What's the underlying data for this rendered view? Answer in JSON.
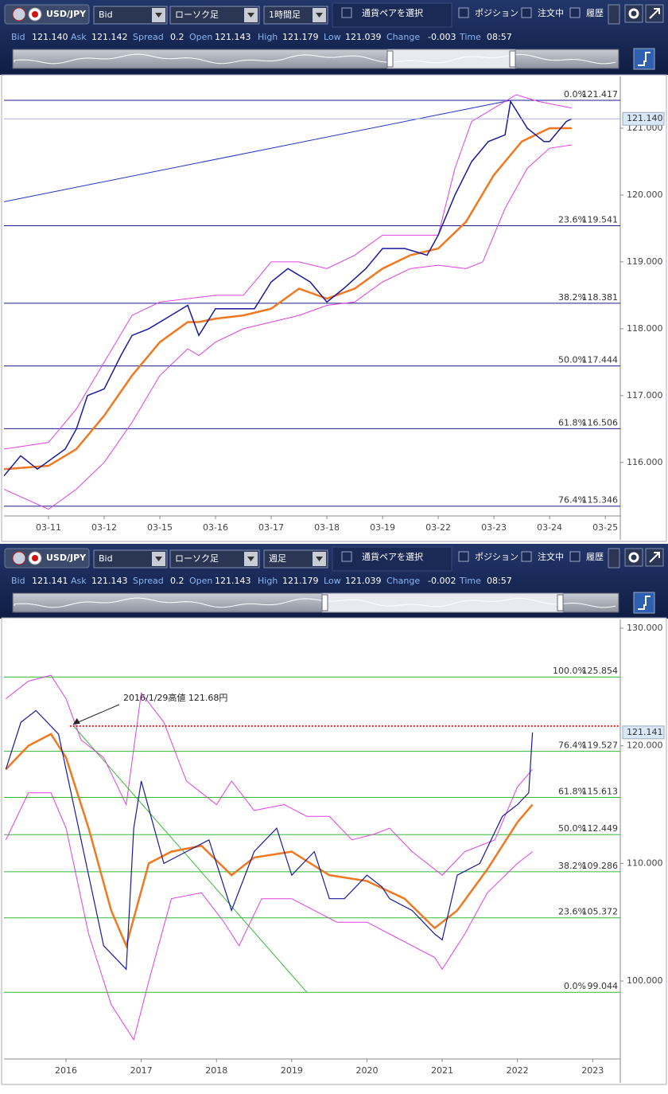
{
  "panels": [
    {
      "toolbar": {
        "pair": "USD/JPY",
        "price": "Bid",
        "chart_type": "ローソク足",
        "timeframe": "1時間足",
        "pair_select": "通貨ペアを選択",
        "position": "ポジション",
        "orders": "注文中",
        "history": "履歴"
      },
      "quote": [
        [
          "Bid",
          "121.140"
        ],
        [
          "Ask",
          "121.142"
        ],
        [
          "Spread",
          "0.2"
        ],
        [
          "Open",
          "121.143"
        ],
        [
          "High",
          "121.179"
        ],
        [
          "Low",
          "121.039"
        ],
        [
          "Change",
          "-0.003"
        ],
        [
          "Time",
          "08:57"
        ]
      ],
      "chart": {
        "ylim": [
          115.2,
          121.774
        ],
        "xlim": [
          -0.8,
          10.27
        ],
        "yticks": [
          {
            "value": 116,
            "label": "116.000"
          },
          {
            "value": 117,
            "label": "117.000"
          },
          {
            "value": 118,
            "label": "118.000"
          },
          {
            "value": 119,
            "label": "119.000"
          },
          {
            "value": 120,
            "label": "120.000"
          },
          {
            "value": 121,
            "label": "121.000"
          }
        ],
        "xticks": [
          {
            "value": 0,
            "label": "03-11"
          },
          {
            "value": 1,
            "label": "03-12"
          },
          {
            "value": 2,
            "label": "03-15"
          },
          {
            "value": 3,
            "label": "03-16"
          },
          {
            "value": 4,
            "label": "03-17"
          },
          {
            "value": 5,
            "label": "03-18"
          },
          {
            "value": 6,
            "label": "03-19"
          },
          {
            "value": 7,
            "label": "03-22"
          },
          {
            "value": 8,
            "label": "03-23"
          },
          {
            "value": 9,
            "label": "03-24"
          },
          {
            "value": 10,
            "label": "03-25"
          }
        ],
        "current": {
          "value": 121.14,
          "label": "121.140"
        },
        "fib_color": "#1a1a8c",
        "fib": [
          {
            "label": "0.0%",
            "value": 121.417
          },
          {
            "label": "23.6%",
            "value": 119.541
          },
          {
            "label": "38.2%",
            "value": 118.381
          },
          {
            "label": "50.0%",
            "value": 117.444
          },
          {
            "label": "61.8%",
            "value": 116.506
          },
          {
            "label": "76.4%",
            "value": 115.346
          }
        ],
        "trendline": {
          "color": "#2233cc",
          "x": [
            -0.8,
            8.3
          ],
          "y": [
            119.9,
            121.417
          ]
        },
        "series": [
          {
            "color": "#e040e0",
            "width": 1,
            "x": [
              -0.8,
              0,
              0.5,
              1,
              1.5,
              2,
              2.5,
              3,
              3.5,
              4,
              4.5,
              5,
              5.5,
              6,
              6.5,
              7,
              7.3,
              7.6,
              8,
              8.4,
              8.8,
              9.4
            ],
            "y": [
              116.2,
              116.3,
              116.8,
              117.5,
              118.2,
              118.4,
              118.45,
              118.5,
              118.5,
              119.0,
              119.0,
              118.9,
              119.1,
              119.4,
              119.4,
              119.4,
              120.4,
              121.1,
              121.3,
              121.5,
              121.4,
              121.3
            ]
          },
          {
            "color": "#e040e0",
            "width": 1,
            "x": [
              -0.8,
              0,
              0.5,
              1,
              1.5,
              2,
              2.5,
              2.7,
              3,
              3.5,
              4,
              4.5,
              5,
              5.5,
              6,
              6.5,
              7,
              7.5,
              7.8,
              8.2,
              8.6,
              9,
              9.4
            ],
            "y": [
              115.6,
              115.3,
              115.6,
              116.0,
              116.6,
              117.3,
              117.7,
              117.6,
              117.8,
              118.0,
              118.1,
              118.2,
              118.35,
              118.4,
              118.7,
              118.9,
              118.95,
              118.9,
              119.0,
              119.8,
              120.4,
              120.7,
              120.75
            ]
          },
          {
            "color": "#f07820",
            "width": 2.5,
            "x": [
              -0.8,
              0,
              0.5,
              1,
              1.5,
              2,
              2.5,
              2.7,
              3,
              3.5,
              4,
              4.5,
              5,
              5.5,
              6,
              6.5,
              7,
              7.5,
              8,
              8.5,
              9,
              9.4
            ],
            "y": [
              115.9,
              115.95,
              116.2,
              116.7,
              117.3,
              117.8,
              118.1,
              118.1,
              118.15,
              118.2,
              118.3,
              118.6,
              118.45,
              118.6,
              118.9,
              119.1,
              119.2,
              119.6,
              120.3,
              120.8,
              121.0,
              121.0
            ]
          },
          {
            "color": "#1a1aa0",
            "width": 1.5,
            "x": [
              -0.8,
              -0.5,
              -0.2,
              0.3,
              0.5,
              0.7,
              1.0,
              1.3,
              1.5,
              1.8,
              2.2,
              2.5,
              2.7,
              3.0,
              3.3,
              3.7,
              4.0,
              4.3,
              4.7,
              5.0,
              5.3,
              5.7,
              6.0,
              6.4,
              6.8,
              7.0,
              7.3,
              7.6,
              7.9,
              8.2,
              8.3,
              8.6,
              8.9,
              9.0,
              9.3,
              9.4
            ],
            "y": [
              115.8,
              116.1,
              115.9,
              116.2,
              116.5,
              117.0,
              117.1,
              117.6,
              117.9,
              118.0,
              118.2,
              118.35,
              117.9,
              118.3,
              118.3,
              118.3,
              118.7,
              118.9,
              118.7,
              118.4,
              118.6,
              118.9,
              119.2,
              119.2,
              119.1,
              119.4,
              120.0,
              120.5,
              120.8,
              120.9,
              121.4,
              121.0,
              120.8,
              120.8,
              121.1,
              121.14
            ]
          }
        ]
      }
    },
    {
      "toolbar": {
        "pair": "USD/JPY",
        "price": "Bid",
        "chart_type": "ローソク足",
        "timeframe": "週足",
        "pair_select": "通貨ペアを選択",
        "position": "ポジション",
        "orders": "注文中",
        "history": "履歴"
      },
      "quote": [
        [
          "Bid",
          "121.141"
        ],
        [
          "Ask",
          "121.143"
        ],
        [
          "Spread",
          "0.2"
        ],
        [
          "Open",
          "121.143"
        ],
        [
          "High",
          "121.179"
        ],
        [
          "Low",
          "121.039"
        ],
        [
          "Change",
          "-0.002"
        ],
        [
          "Time",
          "08:57"
        ]
      ],
      "chart": {
        "ylim": [
          93.37,
          130.745
        ],
        "xlim": [
          2015.175,
          2023.367
        ],
        "yticks": [
          {
            "value": 100,
            "label": "100.000"
          },
          {
            "value": 110,
            "label": "110.000"
          },
          {
            "value": 120,
            "label": "120.000"
          },
          {
            "value": 130,
            "label": "130.000"
          }
        ],
        "xticks": [
          2016,
          2017,
          2018,
          2019,
          2020,
          2021,
          2022,
          2023
        ],
        "current": {
          "value": 121.141,
          "label": "121.141"
        },
        "fib_color": "#33bb33",
        "fib": [
          {
            "label": "100.0%",
            "value": 125.854
          },
          {
            "label": "76.4%",
            "value": 119.527
          },
          {
            "label": "61.8%",
            "value": 115.613
          },
          {
            "label": "50.0%",
            "value": 112.449
          },
          {
            "label": "38.2%",
            "value": 109.286
          },
          {
            "label": "23.6%",
            "value": 105.372
          },
          {
            "label": "0.0%",
            "value": 99.044
          }
        ],
        "trendline": {
          "color": "#33bb33",
          "x": [
            2016.1,
            2019.2
          ],
          "y": [
            121.68,
            99.044
          ]
        },
        "annotation": {
          "text": "2016/1/29高値 121.68円",
          "value": 121.68,
          "x": 2016.05,
          "color": "#dd2222"
        },
        "series": [
          {
            "color": "#e040e0",
            "width": 1,
            "x": [
              2015.2,
              2015.5,
              2015.8,
              2016.0,
              2016.2,
              2016.5,
              2016.8,
              2017.0,
              2017.3,
              2017.6,
              2018.0,
              2018.2,
              2018.5,
              2018.9,
              2019.2,
              2019.5,
              2019.8,
              2020.1,
              2020.3,
              2020.6,
              2021.0,
              2021.3,
              2021.7,
              2022.0,
              2022.2
            ],
            "y": [
              124,
              125.5,
              126,
              124,
              120.5,
              119,
              115,
              124.5,
              122,
              117,
              115,
              117,
              114.5,
              115,
              114,
              114,
              112,
              112.5,
              113,
              111,
              109,
              111,
              112,
              116.5,
              118
            ]
          },
          {
            "color": "#e040e0",
            "width": 1,
            "x": [
              2015.2,
              2015.5,
              2015.8,
              2016.0,
              2016.3,
              2016.6,
              2016.9,
              2017.1,
              2017.4,
              2017.8,
              2018.1,
              2018.3,
              2018.6,
              2019.0,
              2019.3,
              2019.6,
              2020.0,
              2020.3,
              2020.6,
              2020.9,
              2021.0,
              2021.3,
              2021.6,
              2022.0,
              2022.2
            ],
            "y": [
              112,
              116,
              116,
              113,
              104,
              98,
              95,
              100,
              107,
              107.5,
              105,
              103,
              107,
              107,
              106,
              105,
              105,
              104,
              103,
              102,
              101,
              104,
              107.5,
              110,
              111
            ]
          },
          {
            "color": "#f07820",
            "width": 2.5,
            "x": [
              2015.2,
              2015.5,
              2015.8,
              2016.0,
              2016.3,
              2016.6,
              2016.8,
              2017.1,
              2017.4,
              2017.8,
              2018.2,
              2018.5,
              2019.0,
              2019.5,
              2020.0,
              2020.5,
              2020.9,
              2021.2,
              2021.6,
              2022.0,
              2022.2
            ],
            "y": [
              118,
              120,
              121,
              119,
              113,
              106,
              103,
              110,
              111,
              111.5,
              109,
              110.5,
              111,
              109,
              108.5,
              107,
              104.5,
              106,
              109.5,
              113.5,
              115
            ]
          },
          {
            "color": "#1a1aa0",
            "width": 1.2,
            "x": [
              2015.2,
              2015.4,
              2015.6,
              2015.9,
              2016.0,
              2016.2,
              2016.5,
              2016.8,
              2016.9,
              2017.0,
              2017.3,
              2017.6,
              2017.9,
              2018.0,
              2018.2,
              2018.5,
              2018.8,
              2019.0,
              2019.3,
              2019.5,
              2019.7,
              2020.0,
              2020.2,
              2020.3,
              2020.6,
              2020.9,
              2021.0,
              2021.2,
              2021.5,
              2021.8,
              2022.0,
              2022.15,
              2022.2
            ],
            "y": [
              118,
              122,
              123,
              121,
              118,
              112,
              103,
              101,
              113,
              117,
              110,
              111,
              112,
              110,
              106,
              111,
              113,
              109,
              111,
              107,
              107,
              109,
              108,
              107,
              106,
              104,
              103.5,
              109,
              110,
              114,
              115,
              116,
              121.141
            ]
          }
        ]
      }
    }
  ]
}
